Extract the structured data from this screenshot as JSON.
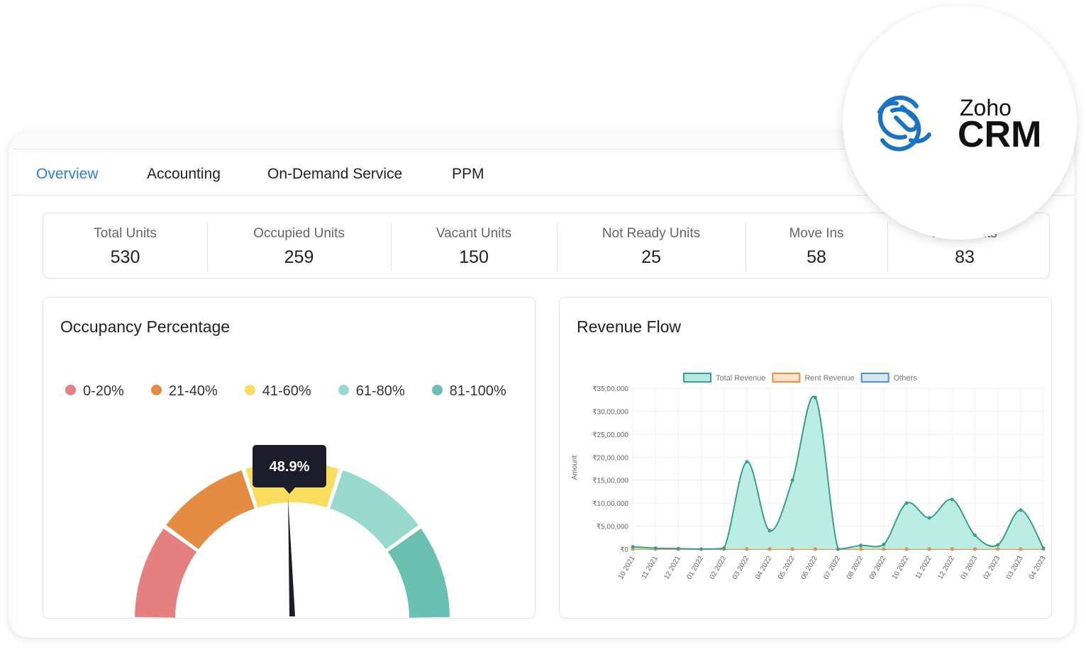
{
  "tabs": [
    "Overview",
    "Accounting",
    "On-Demand Service",
    "PPM"
  ],
  "kpis": [
    {
      "label": "Total Units",
      "value": "530"
    },
    {
      "label": "Occupied Units",
      "value": "259"
    },
    {
      "label": "Vacant Units",
      "value": "150"
    },
    {
      "label": "Not Ready Units",
      "value": "25"
    },
    {
      "label": "Move Ins",
      "value": "58"
    },
    {
      "label": "Move Outs",
      "value": "83"
    }
  ],
  "occupancy": {
    "title": "Occupancy Percentage",
    "legend": [
      {
        "label": "0-20%",
        "color": "#e58080"
      },
      {
        "label": "21-40%",
        "color": "#e38c42"
      },
      {
        "label": "41-60%",
        "color": "#f9dd5f"
      },
      {
        "label": "61-80%",
        "color": "#97d9cf"
      },
      {
        "label": "81-100%",
        "color": "#69bfb0"
      }
    ],
    "value_percent": 48.9,
    "tooltip": "48.9%"
  },
  "logo": {
    "brand": "Zoho",
    "product": "CRM"
  },
  "chart_data": {
    "type": "line",
    "title": "Revenue Flow",
    "ylabel": "Amount",
    "xlabel": "",
    "ylim": [
      0,
      3500000
    ],
    "yticks": [
      "₹0",
      "₹5,00,000",
      "₹10,00,000",
      "₹15,00,000",
      "₹20,00,000",
      "₹25,00,000",
      "₹30,00,000",
      "₹35,00,000"
    ],
    "categories": [
      "10 2021",
      "11 2021",
      "12 2021",
      "01 2022",
      "02 2022",
      "03 2022",
      "04 2022",
      "05 2022",
      "06 2022",
      "07 2022",
      "08 2022",
      "09 2022",
      "10 2022",
      "11 2022",
      "12 2022",
      "01 2023",
      "02 2023",
      "03 2023",
      "04 2023"
    ],
    "legend_position": "top",
    "series": [
      {
        "name": "Total Revenue",
        "color": "#3a9e8c",
        "fill": "#b5ebe2",
        "values": [
          50000,
          20000,
          10000,
          0,
          20000,
          1900000,
          400000,
          1500000,
          3300000,
          0,
          80000,
          100000,
          1000000,
          680000,
          1080000,
          300000,
          90000,
          850000,
          20000
        ]
      },
      {
        "name": "Rent Revenue",
        "color": "#e8913f",
        "fill": "#fde3cc",
        "values": [
          0,
          0,
          0,
          0,
          0,
          0,
          0,
          0,
          0,
          0,
          0,
          0,
          0,
          0,
          0,
          0,
          0,
          0,
          0
        ]
      },
      {
        "name": "Others",
        "color": "#4a8fd8",
        "fill": "#d6e6f2",
        "values": [
          0,
          0,
          0,
          0,
          0,
          0,
          0,
          0,
          0,
          0,
          0,
          0,
          0,
          0,
          0,
          0,
          0,
          0,
          0
        ]
      }
    ]
  }
}
